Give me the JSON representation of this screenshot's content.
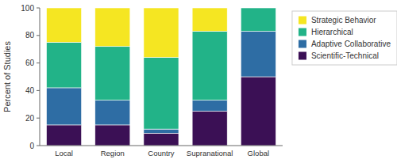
{
  "chart_data": {
    "type": "bar",
    "stacked": true,
    "categories": [
      "Local",
      "Region",
      "Country",
      "Supranational",
      "Global"
    ],
    "series": [
      {
        "name": "Scientific-Technical",
        "color": "#3b1055",
        "values": [
          15,
          15,
          9,
          25,
          50
        ]
      },
      {
        "name": "Adaptive Collaborative",
        "color": "#2e6da4",
        "values": [
          27,
          18,
          3,
          8,
          33
        ]
      },
      {
        "name": "Hierarchical",
        "color": "#22b388",
        "values": [
          33,
          39,
          52,
          50,
          17
        ]
      },
      {
        "name": "Strategic Behavior",
        "color": "#f5e622",
        "values": [
          25,
          28,
          36,
          17,
          0
        ]
      }
    ],
    "ylabel": "Percent of Studies",
    "ylim": [
      0,
      100
    ],
    "yticks": [
      0,
      20,
      40,
      60,
      80,
      100
    ],
    "grid": false,
    "legend": "right"
  }
}
